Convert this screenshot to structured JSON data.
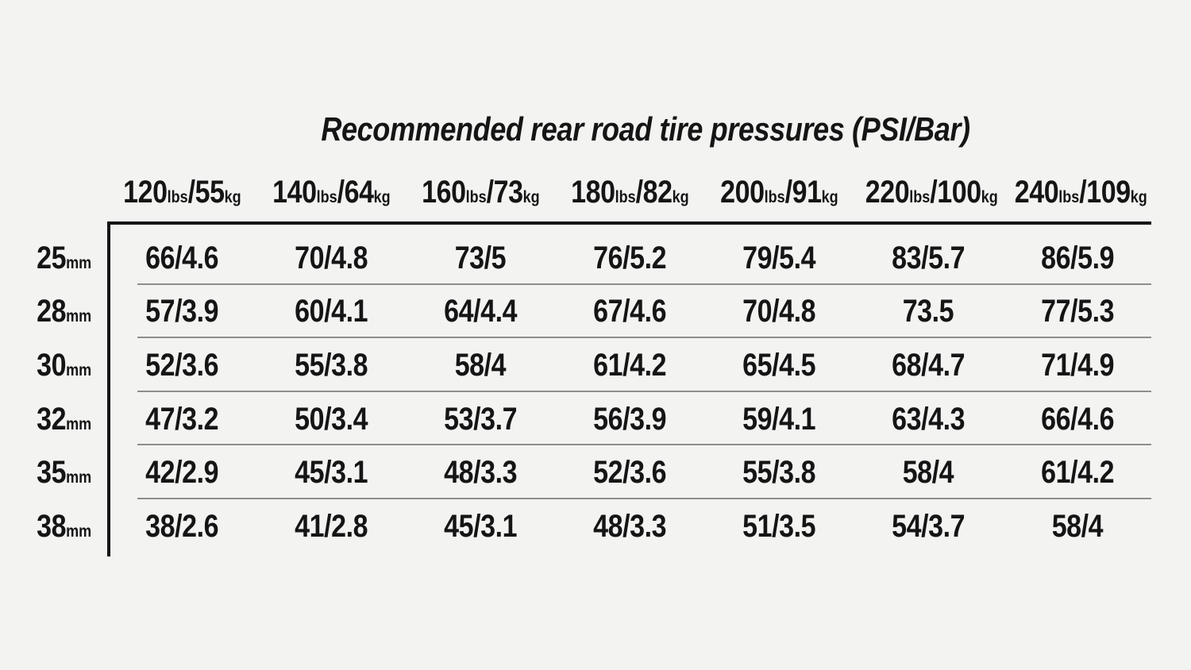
{
  "title": "Recommended rear road tire pressures (PSI/Bar)",
  "colors": {
    "background": "#f3f3f2",
    "text": "#151515",
    "border_black": "#151515",
    "separator_gray": "#8e8e8e"
  },
  "chart_data": {
    "type": "table",
    "title": "Recommended rear road tire pressures (PSI/Bar)",
    "value_units": "PSI/Bar",
    "column_axis_meaning": "rider weight",
    "row_axis_meaning": "tire width",
    "column_headers": [
      "120lbs/55kg",
      "140lbs/64kg",
      "160lbs/73kg",
      "180lbs/82kg",
      "200lbs/91kg",
      "220lbs/100kg",
      "240lbs/109kg"
    ],
    "row_headers": [
      "25mm",
      "28mm",
      "30mm",
      "32mm",
      "35mm",
      "38mm"
    ],
    "rows": [
      [
        "66/4.6",
        "70/4.8",
        "73/5",
        "76/5.2",
        "79/5.4",
        "83/5.7",
        "86/5.9"
      ],
      [
        "57/3.9",
        "60/4.1",
        "64/4.4",
        "67/4.6",
        "70/4.8",
        "73.5",
        "77/5.3"
      ],
      [
        "52/3.6",
        "55/3.8",
        "58/4",
        "61/4.2",
        "65/4.5",
        "68/4.7",
        "71/4.9"
      ],
      [
        "47/3.2",
        "50/3.4",
        "53/3.7",
        "56/3.9",
        "59/4.1",
        "63/4.3",
        "66/4.6"
      ],
      [
        "42/2.9",
        "45/3.1",
        "48/3.3",
        "52/3.6",
        "55/3.8",
        "58/4",
        "61/4.2"
      ],
      [
        "38/2.6",
        "41/2.8",
        "45/3.1",
        "48/3.3",
        "51/3.5",
        "54/3.7",
        "58/4"
      ]
    ]
  }
}
